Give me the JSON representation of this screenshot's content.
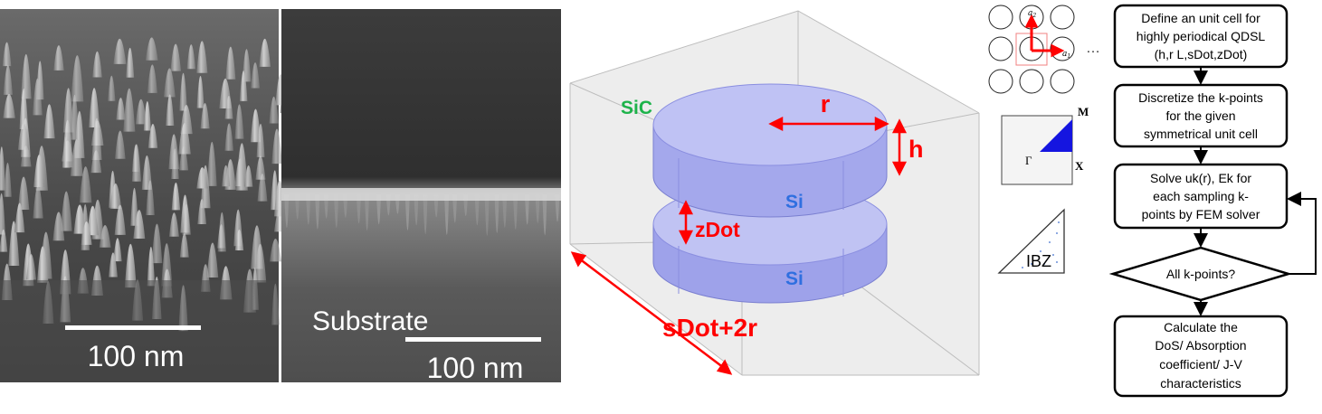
{
  "sem": {
    "left_scale_label": "100 nm",
    "right_scale_label": "100 nm",
    "substrate_label": "Substrate"
  },
  "model3d": {
    "matrix_label": "SiC",
    "radius_label": "r",
    "height_label": "h",
    "spacing_label": "zDot",
    "dot_material_label": "Si",
    "cell_width_label": "sDot+2r",
    "colors": {
      "annotation_red": "#ff0000",
      "si_blue": "#2f6fe0",
      "sic_green": "#1db34a",
      "cylinder_fill": "#b9bdf5"
    }
  },
  "lattice": {
    "vector_a2": "a",
    "vector_a2_sub": "2",
    "vector_a1": "a",
    "vector_a1_sub": "1",
    "ellipsis": "…",
    "bz_point_M": "M",
    "bz_point_Gamma": "Γ",
    "bz_point_X": "X",
    "ibz_label": "IBZ"
  },
  "flowchart": {
    "steps": [
      [
        "Define an unit cell for",
        "highly periodical QDSL",
        "(h,r L,sDot,zDot)"
      ],
      [
        "Discretize the k-points",
        "for the given",
        "symmetrical unit cell"
      ],
      [
        "Solve uk(r), Ek for",
        "each sampling k-",
        "points by FEM solver"
      ],
      [
        "All k-points?"
      ],
      [
        "Calculate the",
        "DoS/ Absorption",
        "coefficient/ J-V",
        "characteristics"
      ]
    ]
  }
}
